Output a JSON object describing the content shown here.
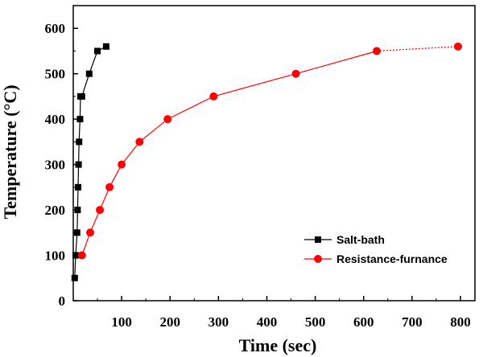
{
  "chart_data": {
    "type": "line",
    "xlabel": "Time (sec)",
    "ylabel": "Temperature (°C)",
    "xlim": [
      0,
      830
    ],
    "ylim": [
      0,
      650
    ],
    "x_ticks": [
      100,
      200,
      300,
      400,
      500,
      600,
      700,
      800
    ],
    "y_ticks": [
      0,
      100,
      200,
      300,
      400,
      500,
      600
    ],
    "grid": false,
    "legend_position": "bottom-right",
    "series": [
      {
        "name": "Salt-bath",
        "color": "#000000",
        "marker": "square",
        "x": [
          3,
          5,
          8,
          9,
          10,
          11,
          12,
          14,
          15,
          18,
          33,
          50,
          68
        ],
        "y": [
          50,
          100,
          150,
          200,
          250,
          300,
          350,
          400,
          450,
          450,
          500,
          550,
          560
        ]
      },
      {
        "name": "Resistance-furnance",
        "color": "#ff0000",
        "marker": "circle",
        "x": [
          18,
          35,
          55,
          75,
          100,
          137,
          195,
          290,
          460,
          627,
          795
        ],
        "y": [
          100,
          150,
          200,
          250,
          300,
          350,
          400,
          450,
          500,
          550,
          560
        ],
        "dotted_last_segment": true
      }
    ]
  }
}
